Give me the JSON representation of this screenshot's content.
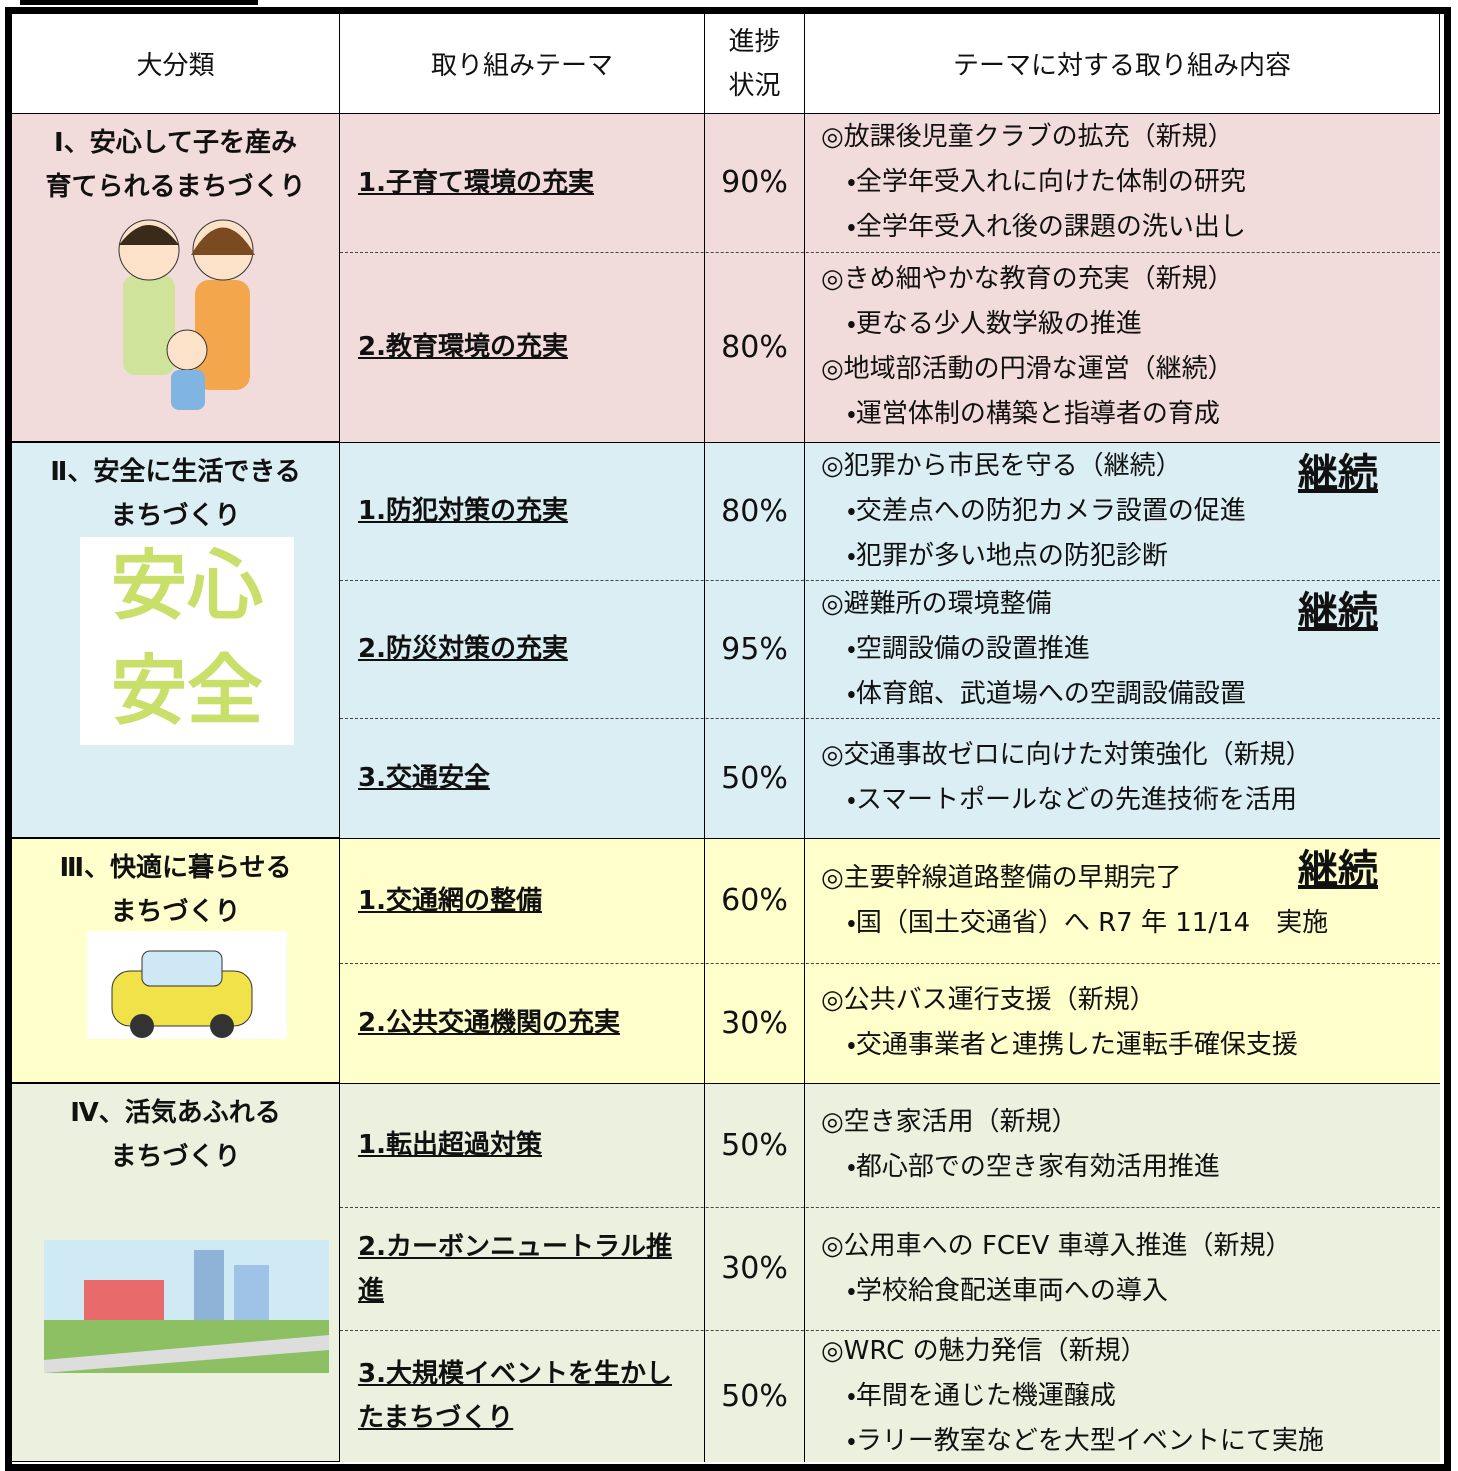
{
  "header": {
    "columns": [
      "大分類",
      "取り組みテーマ",
      "進捗状況",
      "テーマに対する取り組み内容"
    ]
  },
  "groups": [
    {
      "category": [
        "Ⅰ、安心して子を産み",
        "育てられるまちづくり"
      ],
      "rows": [
        {
          "theme": "1.子育て環境の充実",
          "progress": "90%",
          "content": [
            "◎放課後児童クラブの拡充（新規）",
            "・全学年受入れに向けた体制の研究",
            "・全学年受入れ後の課題の洗い出し"
          ]
        },
        {
          "theme": "2.教育環境の充実",
          "progress": "80%",
          "content": [
            "◎きめ細やかな教育の充実（新規）",
            "・更なる少人数学級の推進",
            "◎地域部活動の円滑な運営（継続）",
            "・運営体制の構築と指導者の育成"
          ]
        }
      ]
    },
    {
      "category": [
        "Ⅱ、安全に生活できる",
        "まちづくり"
      ],
      "rows": [
        {
          "theme": "1.防犯対策の充実",
          "progress": "80%",
          "content": [
            "◎犯罪から市民を守る（継続）",
            "・交差点への防犯カメラ設置の促進",
            "・犯罪が多い地点の防犯診断"
          ],
          "badge": "継続"
        },
        {
          "theme": "2.防災対策の充実",
          "progress": "95%",
          "content": [
            "◎避難所の環境整備",
            "・空調設備の設置推進",
            "・体育館、武道場への空調設備設置"
          ],
          "badge": "継続"
        },
        {
          "theme": "3.交通安全",
          "progress": "50%",
          "content": [
            "◎交通事故ゼロに向けた対策強化（新規）",
            "・スマートポールなどの先進技術を活用"
          ]
        }
      ]
    },
    {
      "category": [
        "Ⅲ、快適に暮らせる",
        "まちづくり"
      ],
      "rows": [
        {
          "theme": "1.交通網の整備",
          "progress": "60%",
          "content": [
            "◎主要幹線道路整備の早期完了",
            "・国（国土交通省）へ R7 年 11/14　実施"
          ],
          "badge": "継続"
        },
        {
          "theme": "2.公共交通機関の充実",
          "progress": "30%",
          "content": [
            "◎公共バス運行支援（新規）",
            "・交通事業者と連携した運転手確保支援"
          ]
        }
      ]
    },
    {
      "category": [
        "Ⅳ、活気あふれる",
        "まちづくり"
      ],
      "rows": [
        {
          "theme": "1.転出超過対策",
          "progress": "50%",
          "content": [
            "◎空き家活用（新規）",
            "・都心部での空き家有効活用推進"
          ]
        },
        {
          "theme": "2.カーボンニュートラル推進",
          "progress": "30%",
          "content": [
            "◎公用車への FCEV 車導入推進（新規）",
            "・学校給食配送車両への導入"
          ]
        },
        {
          "theme": "3.大規模イベントを生かしたまちづくり",
          "progress": "50%",
          "content": [
            "◎WRC の魅力発信（新規）",
            "・年間を通じた機運醸成",
            "・ラリー教室などを大型イベントにて実施"
          ]
        }
      ]
    }
  ]
}
